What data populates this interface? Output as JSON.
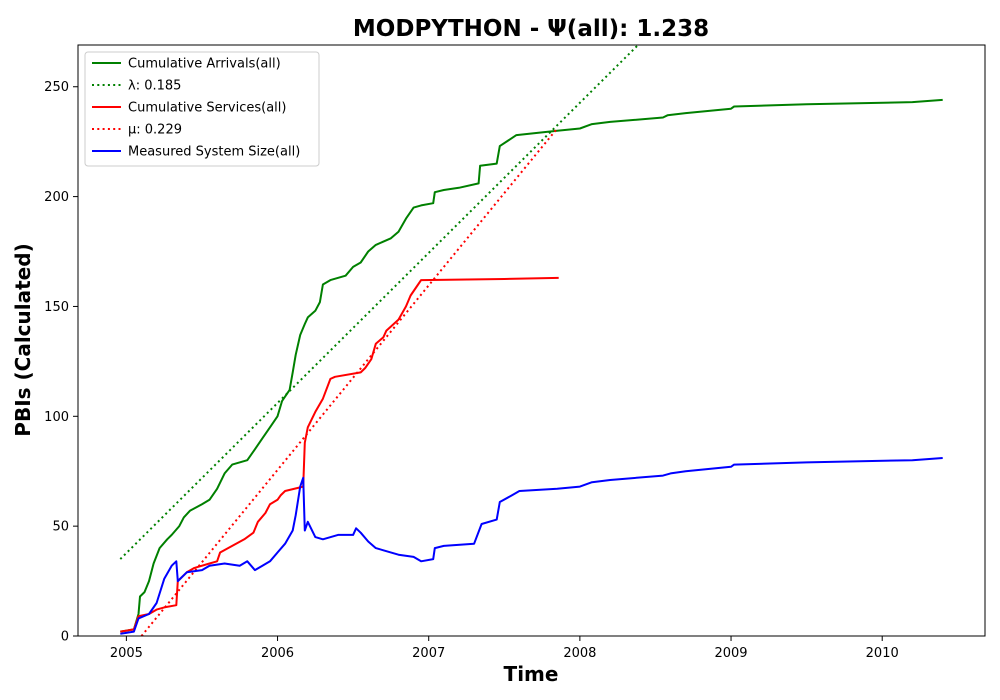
{
  "chart_data": {
    "type": "line",
    "title": "MODPYTHON -  Ψ(all): 1.238",
    "xlabel": "Time",
    "ylabel": "PBIs (Calculated)",
    "xlim": [
      2004.68,
      2010.68
    ],
    "ylim": [
      0,
      269
    ],
    "xticks": [
      2005,
      2006,
      2007,
      2008,
      2009,
      2010
    ],
    "yticks": [
      0,
      50,
      100,
      150,
      200,
      250
    ],
    "grid": false,
    "legend_position": "upper-left",
    "series": [
      {
        "name": "Cumulative Arrivals(all)",
        "color": "#008000",
        "style": "solid",
        "points": [
          [
            2004.96,
            2
          ],
          [
            2005.05,
            3
          ],
          [
            2005.08,
            10
          ],
          [
            2005.09,
            18
          ],
          [
            2005.12,
            20
          ],
          [
            2005.15,
            25
          ],
          [
            2005.18,
            33
          ],
          [
            2005.22,
            40
          ],
          [
            2005.27,
            44
          ],
          [
            2005.3,
            46
          ],
          [
            2005.35,
            50
          ],
          [
            2005.38,
            54
          ],
          [
            2005.42,
            57
          ],
          [
            2005.5,
            60
          ],
          [
            2005.55,
            62
          ],
          [
            2005.6,
            67
          ],
          [
            2005.65,
            74
          ],
          [
            2005.7,
            78
          ],
          [
            2005.8,
            80
          ],
          [
            2005.85,
            85
          ],
          [
            2005.9,
            90
          ],
          [
            2005.95,
            95
          ],
          [
            2006.0,
            100
          ],
          [
            2006.03,
            107
          ],
          [
            2006.08,
            112
          ],
          [
            2006.1,
            120
          ],
          [
            2006.12,
            128
          ],
          [
            2006.15,
            137
          ],
          [
            2006.18,
            142
          ],
          [
            2006.2,
            145
          ],
          [
            2006.25,
            148
          ],
          [
            2006.28,
            152
          ],
          [
            2006.3,
            160
          ],
          [
            2006.35,
            162
          ],
          [
            2006.45,
            164
          ],
          [
            2006.5,
            168
          ],
          [
            2006.55,
            170
          ],
          [
            2006.6,
            175
          ],
          [
            2006.65,
            178
          ],
          [
            2006.75,
            181
          ],
          [
            2006.8,
            184
          ],
          [
            2006.85,
            190
          ],
          [
            2006.9,
            195
          ],
          [
            2006.95,
            196
          ],
          [
            2007.03,
            197
          ],
          [
            2007.04,
            202
          ],
          [
            2007.1,
            203
          ],
          [
            2007.2,
            204
          ],
          [
            2007.33,
            206
          ],
          [
            2007.34,
            214
          ],
          [
            2007.45,
            215
          ],
          [
            2007.47,
            223
          ],
          [
            2007.58,
            228
          ],
          [
            2007.85,
            230
          ],
          [
            2008.0,
            231
          ],
          [
            2008.08,
            233
          ],
          [
            2008.2,
            234
          ],
          [
            2008.55,
            236
          ],
          [
            2008.58,
            237
          ],
          [
            2008.7,
            238
          ],
          [
            2009.0,
            240
          ],
          [
            2009.02,
            241
          ],
          [
            2009.5,
            242
          ],
          [
            2010.2,
            243
          ],
          [
            2010.4,
            244
          ]
        ]
      },
      {
        "name": "λ: 0.185",
        "color": "#008000",
        "style": "dotted",
        "points": [
          [
            2004.96,
            35
          ],
          [
            2008.4,
            270
          ]
        ]
      },
      {
        "name": "Cumulative Services(all)",
        "color": "#ff0000",
        "style": "solid",
        "points": [
          [
            2004.96,
            2
          ],
          [
            2005.05,
            3
          ],
          [
            2005.08,
            9
          ],
          [
            2005.15,
            10
          ],
          [
            2005.2,
            12
          ],
          [
            2005.25,
            13
          ],
          [
            2005.33,
            14
          ],
          [
            2005.34,
            25
          ],
          [
            2005.4,
            29
          ],
          [
            2005.45,
            31
          ],
          [
            2005.55,
            33
          ],
          [
            2005.6,
            34
          ],
          [
            2005.62,
            38
          ],
          [
            2005.7,
            41
          ],
          [
            2005.78,
            44
          ],
          [
            2005.84,
            47
          ],
          [
            2005.87,
            52
          ],
          [
            2005.92,
            56
          ],
          [
            2005.95,
            60
          ],
          [
            2006.0,
            62
          ],
          [
            2006.02,
            64
          ],
          [
            2006.05,
            66
          ],
          [
            2006.17,
            68
          ],
          [
            2006.18,
            88
          ],
          [
            2006.2,
            95
          ],
          [
            2006.25,
            102
          ],
          [
            2006.3,
            108
          ],
          [
            2006.35,
            117
          ],
          [
            2006.38,
            118
          ],
          [
            2006.55,
            120
          ],
          [
            2006.58,
            122
          ],
          [
            2006.62,
            126
          ],
          [
            2006.65,
            133
          ],
          [
            2006.7,
            136
          ],
          [
            2006.72,
            139
          ],
          [
            2006.8,
            144
          ],
          [
            2006.85,
            150
          ],
          [
            2006.88,
            155
          ],
          [
            2006.93,
            160
          ],
          [
            2006.95,
            162
          ],
          [
            2007.5,
            162.5
          ],
          [
            2007.86,
            163
          ]
        ]
      },
      {
        "name": "μ: 0.229",
        "color": "#ff0000",
        "style": "dotted",
        "points": [
          [
            2005.1,
            0
          ],
          [
            2007.85,
            231
          ]
        ]
      },
      {
        "name": "Measured System Size(all)",
        "color": "#0000ff",
        "style": "solid",
        "points": [
          [
            2004.96,
            1
          ],
          [
            2005.05,
            2
          ],
          [
            2005.08,
            8
          ],
          [
            2005.15,
            10
          ],
          [
            2005.2,
            15
          ],
          [
            2005.25,
            26
          ],
          [
            2005.3,
            32
          ],
          [
            2005.33,
            34
          ],
          [
            2005.34,
            25
          ],
          [
            2005.4,
            29
          ],
          [
            2005.5,
            30
          ],
          [
            2005.55,
            32
          ],
          [
            2005.65,
            33
          ],
          [
            2005.75,
            32
          ],
          [
            2005.8,
            34
          ],
          [
            2005.85,
            30
          ],
          [
            2005.9,
            32
          ],
          [
            2005.95,
            34
          ],
          [
            2006.0,
            38
          ],
          [
            2006.05,
            42
          ],
          [
            2006.1,
            48
          ],
          [
            2006.12,
            55
          ],
          [
            2006.15,
            68
          ],
          [
            2006.17,
            72
          ],
          [
            2006.18,
            48
          ],
          [
            2006.2,
            52
          ],
          [
            2006.25,
            45
          ],
          [
            2006.3,
            44
          ],
          [
            2006.4,
            46
          ],
          [
            2006.5,
            46
          ],
          [
            2006.52,
            49
          ],
          [
            2006.55,
            47
          ],
          [
            2006.6,
            43
          ],
          [
            2006.65,
            40
          ],
          [
            2006.7,
            39
          ],
          [
            2006.8,
            37
          ],
          [
            2006.9,
            36
          ],
          [
            2006.95,
            34
          ],
          [
            2007.03,
            35
          ],
          [
            2007.04,
            40
          ],
          [
            2007.1,
            41
          ],
          [
            2007.3,
            42
          ],
          [
            2007.35,
            51
          ],
          [
            2007.45,
            53
          ],
          [
            2007.47,
            61
          ],
          [
            2007.55,
            64
          ],
          [
            2007.6,
            66
          ],
          [
            2007.85,
            67
          ],
          [
            2008.0,
            68
          ],
          [
            2008.08,
            70
          ],
          [
            2008.2,
            71
          ],
          [
            2008.55,
            73
          ],
          [
            2008.6,
            74
          ],
          [
            2008.7,
            75
          ],
          [
            2009.0,
            77
          ],
          [
            2009.02,
            78
          ],
          [
            2009.5,
            79
          ],
          [
            2010.2,
            80
          ],
          [
            2010.4,
            81
          ]
        ]
      }
    ]
  }
}
